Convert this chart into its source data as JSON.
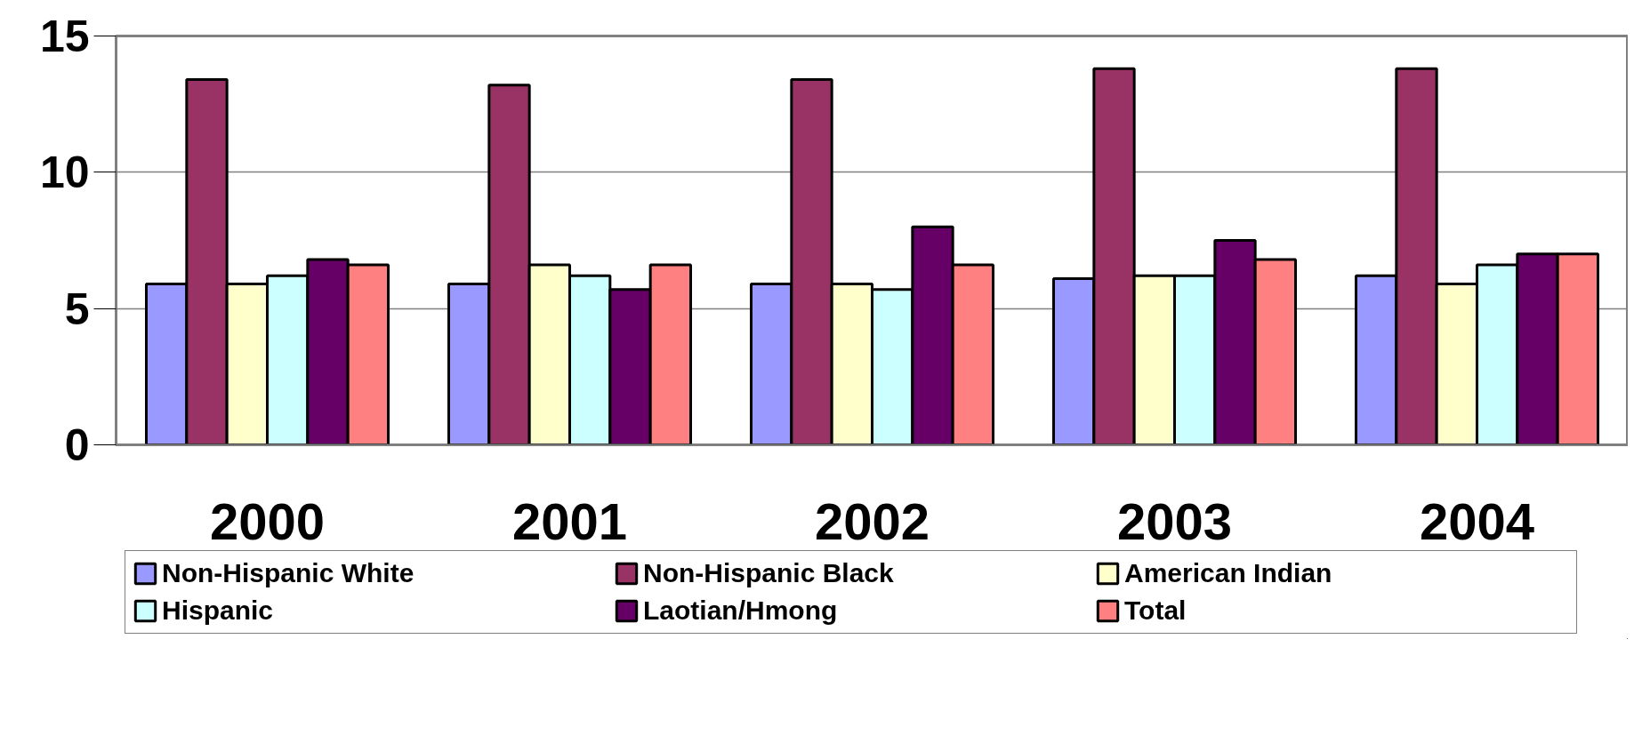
{
  "chart_data": {
    "type": "bar",
    "categories": [
      "2000",
      "2001",
      "2002",
      "2003",
      "2004"
    ],
    "series": [
      {
        "name": "Non-Hispanic White",
        "color": "#9999ff",
        "values": [
          5.9,
          5.9,
          5.9,
          6.1,
          6.2
        ]
      },
      {
        "name": "Non-Hispanic Black",
        "color": "#993366",
        "values": [
          13.4,
          13.2,
          13.4,
          13.8,
          13.8
        ]
      },
      {
        "name": "American Indian",
        "color": "#ffffcc",
        "values": [
          5.9,
          6.6,
          5.9,
          6.2,
          5.9
        ]
      },
      {
        "name": "Hispanic",
        "color": "#ccffff",
        "values": [
          6.2,
          6.2,
          5.7,
          6.2,
          6.6
        ]
      },
      {
        "name": "Laotian/Hmong",
        "color": "#660066",
        "values": [
          6.8,
          5.7,
          8.0,
          7.5,
          7.0
        ]
      },
      {
        "name": "Total",
        "color": "#ff8080",
        "values": [
          6.6,
          6.6,
          6.6,
          6.8,
          7.0
        ]
      }
    ],
    "ylim": [
      0,
      15
    ],
    "yticks": [
      0,
      5,
      10,
      15
    ],
    "grid": "y",
    "legend": "bottom"
  }
}
